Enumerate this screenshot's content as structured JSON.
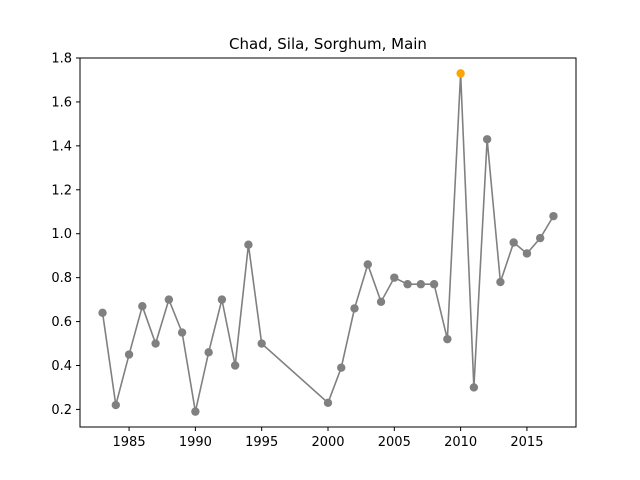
{
  "chart_data": {
    "type": "line",
    "title": "Chad, Sila, Sorghum, Main",
    "xlabel": "",
    "ylabel": "",
    "xlim": [
      1981.3,
      2018.7
    ],
    "ylim": [
      0.12,
      1.8
    ],
    "x_ticks": [
      1985,
      1990,
      1995,
      2000,
      2005,
      2010,
      2015
    ],
    "x_tick_labels": [
      "1985",
      "1990",
      "1995",
      "2000",
      "2005",
      "2010",
      "2015"
    ],
    "y_ticks": [
      0.2,
      0.4,
      0.6,
      0.8,
      1.0,
      1.2,
      1.4,
      1.6,
      1.8
    ],
    "y_tick_labels": [
      "0.2",
      "0.4",
      "0.6",
      "0.8",
      "1.0",
      "1.2",
      "1.4",
      "1.6",
      "1.8"
    ],
    "grid": false,
    "legend": "none",
    "series": [
      {
        "color": "#808080",
        "highlight_color": "#ffa500",
        "highlight_x": 2010,
        "points": [
          {
            "x": 1983,
            "y": 0.64
          },
          {
            "x": 1984,
            "y": 0.22
          },
          {
            "x": 1985,
            "y": 0.45
          },
          {
            "x": 1986,
            "y": 0.67
          },
          {
            "x": 1987,
            "y": 0.5
          },
          {
            "x": 1988,
            "y": 0.7
          },
          {
            "x": 1989,
            "y": 0.55
          },
          {
            "x": 1990,
            "y": 0.19
          },
          {
            "x": 1991,
            "y": 0.46
          },
          {
            "x": 1992,
            "y": 0.7
          },
          {
            "x": 1993,
            "y": 0.4
          },
          {
            "x": 1994,
            "y": 0.95
          },
          {
            "x": 1995,
            "y": 0.5
          },
          {
            "x": 2000,
            "y": 0.23
          },
          {
            "x": 2001,
            "y": 0.39
          },
          {
            "x": 2002,
            "y": 0.66
          },
          {
            "x": 2003,
            "y": 0.86
          },
          {
            "x": 2004,
            "y": 0.69
          },
          {
            "x": 2005,
            "y": 0.8
          },
          {
            "x": 2006,
            "y": 0.77
          },
          {
            "x": 2007,
            "y": 0.77
          },
          {
            "x": 2008,
            "y": 0.77
          },
          {
            "x": 2009,
            "y": 0.52
          },
          {
            "x": 2010,
            "y": 1.73
          },
          {
            "x": 2011,
            "y": 0.3
          },
          {
            "x": 2012,
            "y": 1.43
          },
          {
            "x": 2013,
            "y": 0.78
          },
          {
            "x": 2014,
            "y": 0.96
          },
          {
            "x": 2015,
            "y": 0.91
          },
          {
            "x": 2016,
            "y": 0.98
          },
          {
            "x": 2017,
            "y": 1.08
          }
        ]
      }
    ]
  }
}
